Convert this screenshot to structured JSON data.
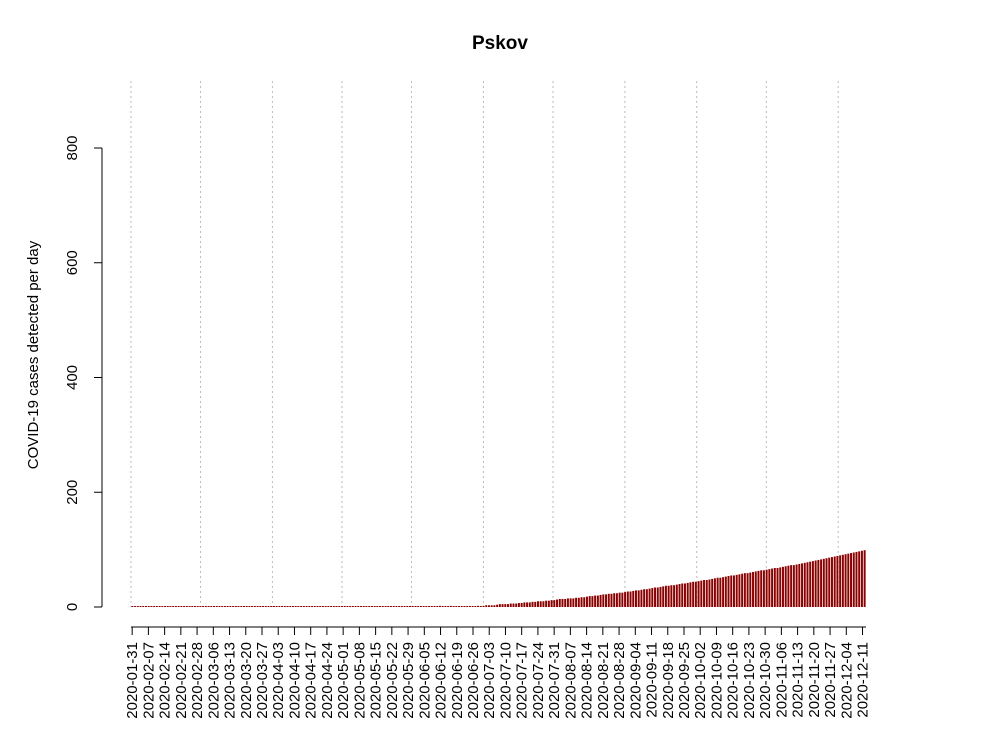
{
  "chart_data": {
    "type": "bar",
    "title": "Pskov",
    "xlabel": "",
    "ylabel": "COVID-19 cases detected per day",
    "x_start": "2020-01-31",
    "x_end": "2020-12-13",
    "ylim": [
      0,
      900
    ],
    "yticks": [
      0,
      200,
      400,
      600,
      800
    ],
    "bar_color": "#8b0000",
    "grid": "vertical dotted lines at month starts",
    "gridline_dates": [
      "2020-01-31",
      "2020-03-01",
      "2020-04-01",
      "2020-05-01",
      "2020-05-31",
      "2020-07-01",
      "2020-07-31",
      "2020-08-31",
      "2020-10-01",
      "2020-10-31",
      "2020-12-01"
    ],
    "xtick_labels": [
      "2020-01-31",
      "2020-02-07",
      "2020-02-14",
      "2020-02-21",
      "2020-02-28",
      "2020-03-06",
      "2020-03-13",
      "2020-03-20",
      "2020-03-27",
      "2020-04-03",
      "2020-04-10",
      "2020-04-17",
      "2020-04-24",
      "2020-05-01",
      "2020-05-08",
      "2020-05-15",
      "2020-05-22",
      "2020-05-29",
      "2020-06-05",
      "2020-06-12",
      "2020-06-19",
      "2020-06-26",
      "2020-07-03",
      "2020-07-10",
      "2020-07-17",
      "2020-07-24",
      "2020-07-31",
      "2020-08-07",
      "2020-08-14",
      "2020-08-21",
      "2020-08-28",
      "2020-09-04",
      "2020-09-11",
      "2020-09-18",
      "2020-09-25",
      "2020-10-02",
      "2020-10-09",
      "2020-10-16",
      "2020-10-23",
      "2020-10-30",
      "2020-11-06",
      "2020-11-13",
      "2020-11-20",
      "2020-11-27",
      "2020-12-04",
      "2020-12-11"
    ],
    "values": [
      0,
      0,
      0,
      0,
      0,
      0,
      0,
      0,
      0,
      0,
      0,
      0,
      0,
      0,
      0,
      0,
      0,
      0,
      0,
      0,
      0,
      0,
      0,
      0,
      0,
      0,
      0,
      0,
      0,
      0,
      0,
      0,
      0,
      0,
      0,
      0,
      0,
      0,
      0,
      0,
      0,
      0,
      0,
      0,
      0,
      0,
      0,
      0,
      0,
      0,
      0,
      0,
      0,
      0,
      0,
      0,
      0,
      0,
      0,
      0,
      0,
      0,
      0,
      0,
      1,
      0,
      0,
      0,
      0,
      0,
      0,
      0,
      0,
      0,
      0,
      0,
      0,
      0,
      0,
      0,
      0,
      0,
      1,
      1,
      1,
      1,
      0,
      1,
      0,
      1,
      0,
      1,
      0,
      0,
      0,
      0,
      0,
      1,
      0,
      1,
      0,
      0,
      1,
      0,
      1,
      0,
      0,
      1,
      0,
      0,
      0,
      0,
      0,
      2,
      0,
      1,
      0,
      2,
      0,
      0,
      0,
      0,
      0,
      0,
      1,
      0,
      1,
      2,
      1,
      2,
      3,
      3,
      3,
      3,
      4,
      5,
      5,
      5,
      5,
      6,
      6,
      6,
      7,
      7,
      8,
      8,
      8,
      9,
      9,
      10,
      10,
      10,
      11,
      11,
      12,
      12,
      13,
      14,
      14,
      14,
      15,
      15,
      15,
      16,
      16,
      17,
      17,
      18,
      19,
      19,
      20,
      20,
      21,
      22,
      22,
      23,
      23,
      24,
      24,
      25,
      25,
      26,
      27,
      27,
      28,
      29,
      29,
      30,
      31,
      31,
      32,
      33,
      34,
      34,
      35,
      36,
      37,
      37,
      38,
      38,
      39,
      40,
      41,
      41,
      42,
      43,
      44,
      44,
      45,
      46,
      47,
      47,
      48,
      49,
      50,
      51,
      51,
      52,
      53,
      54,
      55,
      55,
      56,
      57,
      58,
      59,
      59,
      60,
      61,
      62,
      63,
      64,
      64,
      65,
      66,
      67,
      68,
      68,
      69,
      70,
      71,
      72,
      73,
      73,
      74,
      75,
      76,
      77,
      78,
      79,
      80,
      81,
      82,
      83,
      84,
      85,
      86,
      87,
      88,
      89,
      90,
      91,
      92,
      93,
      94,
      95,
      96,
      97,
      98,
      99
    ]
  }
}
